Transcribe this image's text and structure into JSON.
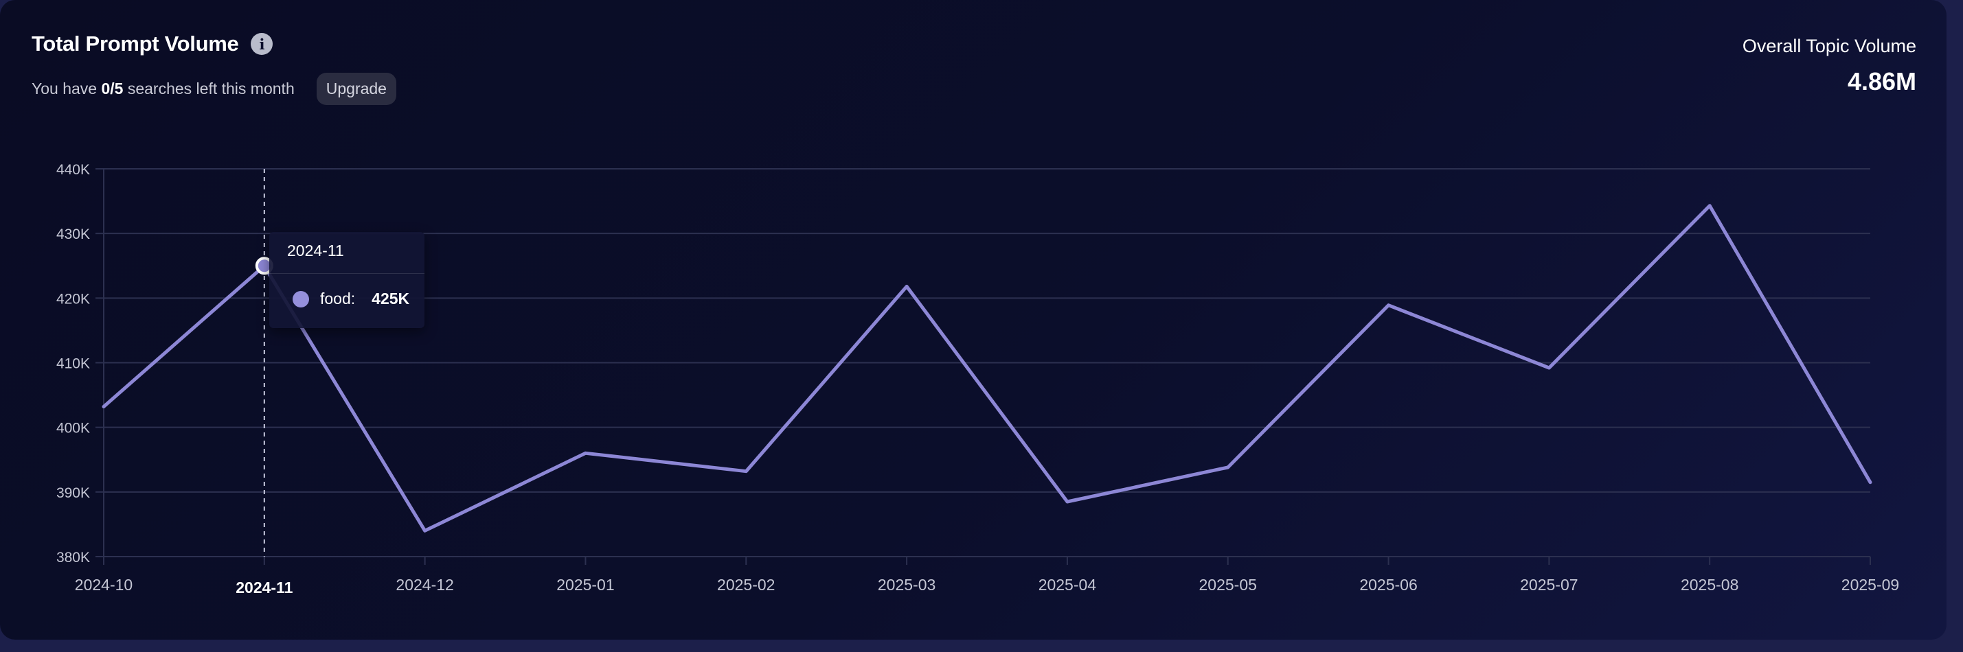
{
  "header": {
    "title": "Total Prompt Volume",
    "info_icon": "info-icon",
    "searches_prefix": "You have ",
    "searches_count": "0/5",
    "searches_suffix": " searches left this month",
    "upgrade_label": "Upgrade"
  },
  "summary": {
    "label": "Overall Topic Volume",
    "value": "4.86M"
  },
  "tooltip": {
    "date": "2024-11",
    "series_label": "food:",
    "value_label": "425K"
  },
  "colors": {
    "line": "#8d87d6",
    "grid": "#2c3050",
    "axis_text": "#c4c6d4",
    "highlight_text": "#ffffff"
  },
  "chart_data": {
    "type": "line",
    "x": [
      "2024-10",
      "2024-11",
      "2024-12",
      "2025-01",
      "2025-02",
      "2025-03",
      "2025-04",
      "2025-05",
      "2025-06",
      "2025-07",
      "2025-08",
      "2025-09"
    ],
    "series": [
      {
        "name": "food",
        "values": [
          403200,
          425000,
          384000,
          396000,
          393200,
          421800,
          388500,
          393800,
          418900,
          409200,
          434300,
          391500
        ]
      }
    ],
    "yticks": [
      "380K",
      "390K",
      "400K",
      "410K",
      "420K",
      "430K",
      "440K"
    ],
    "ylim": [
      380000,
      440000
    ],
    "grid": true,
    "highlighted_index": 1
  }
}
